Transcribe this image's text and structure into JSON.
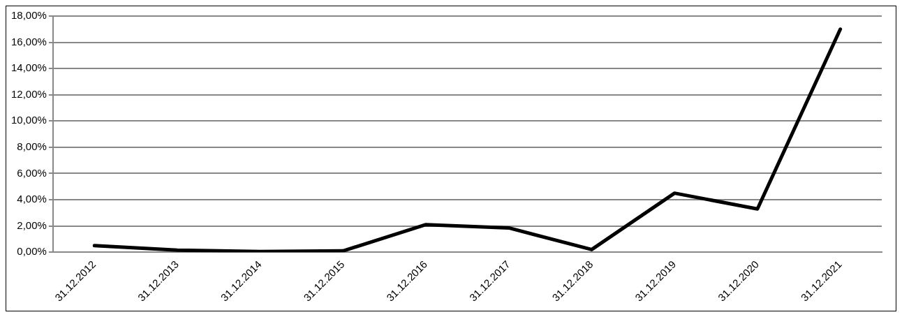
{
  "chart_data": {
    "type": "line",
    "categories": [
      "31.12.2012",
      "31.12.2013",
      "31.12.2014",
      "31.12.2015",
      "31.12.2016",
      "31.12.2017",
      "31.12.2018",
      "31.12.2019",
      "31.12.2020",
      "31.12.2021"
    ],
    "series": [
      {
        "color": "#000000",
        "values": [
          0.5,
          0.15,
          0.05,
          0.1,
          2.1,
          1.85,
          0.2,
          4.5,
          3.3,
          17.0
        ]
      }
    ],
    "ylim": [
      0,
      18
    ],
    "yticks": [
      {
        "value": 0,
        "label": "0,00%"
      },
      {
        "value": 2,
        "label": "2,00%"
      },
      {
        "value": 4,
        "label": "4,00%"
      },
      {
        "value": 6,
        "label": "6,00%"
      },
      {
        "value": 8,
        "label": "8,00%"
      },
      {
        "value": 10,
        "label": "10,00%"
      },
      {
        "value": 12,
        "label": "12,00%"
      },
      {
        "value": 14,
        "label": "14,00%"
      },
      {
        "value": 16,
        "label": "16,00%"
      },
      {
        "value": 18,
        "label": "18,00%"
      }
    ],
    "grid": "y",
    "legend": false,
    "marker": "none",
    "line_style": "solid"
  }
}
